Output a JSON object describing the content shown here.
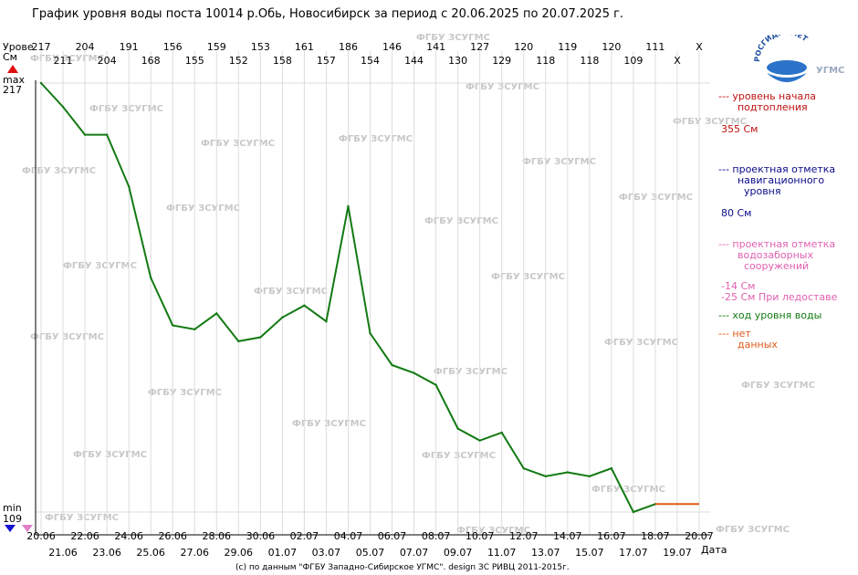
{
  "header": {
    "title": "График уровня воды поста 10014 р.Обь, Новосибирск за период с 20.06.2025 по 20.07.2025 г.",
    "copyright": "(c) по данным \"ФГБУ Западно-Сибирское УГМС\". design ЗС РИВЦ 2011-2015г."
  },
  "logo": {
    "top_text": "РОСГИДРОМЕТ",
    "side_text": "УГМС",
    "color": "#1e4fa0"
  },
  "watermark": "ФГБУ ЗСУГМС",
  "axis": {
    "y_label_line1": "Урове",
    "y_label_line2": "См",
    "max_label": "max",
    "max_value": "217",
    "min_label": "min",
    "min_value": "109",
    "x_label": "Дата"
  },
  "chart_data": {
    "type": "line",
    "title": "График уровня воды поста 10014 р.Обь, Новосибирск за период с 20.06.2025 по 20.07.2025 г.",
    "xlabel": "Дата",
    "ylabel": "Урове См",
    "ylim": [
      109,
      217
    ],
    "x": [
      "20.06",
      "21.06",
      "22.06",
      "23.06",
      "24.06",
      "25.06",
      "26.06",
      "27.06",
      "28.06",
      "29.06",
      "30.06",
      "01.07",
      "02.07",
      "03.07",
      "04.07",
      "05.07",
      "06.07",
      "07.07",
      "08.07",
      "09.07",
      "10.07",
      "11.07",
      "12.07",
      "13.07",
      "14.07",
      "15.07",
      "16.07",
      "17.07",
      "18.07",
      "19.07",
      "20.07"
    ],
    "series": [
      {
        "name": "ход уровня воды",
        "color": "#137a13",
        "values": [
          217,
          211,
          204,
          204,
          191,
          168,
          156,
          155,
          159,
          152,
          153,
          158,
          161,
          157,
          186,
          154,
          146,
          144,
          141,
          130,
          127,
          129,
          120,
          118,
          119,
          118,
          120,
          109,
          111,
          null,
          null
        ]
      }
    ],
    "missing_data": {
      "name": "нет данных",
      "color": "#e05a1a",
      "from": "18.07",
      "to": "20.07",
      "value": 111
    },
    "top_row_values": [
      "217",
      "204",
      "191",
      "156",
      "159",
      "153",
      "161",
      "186",
      "146",
      "141",
      "127",
      "120",
      "119",
      "120",
      "111",
      "X"
    ],
    "second_row_values": [
      "211",
      "204",
      "168",
      "155",
      "152",
      "158",
      "157",
      "154",
      "144",
      "130",
      "129",
      "118",
      "118",
      "109",
      "X"
    ],
    "missing_marker": "X"
  },
  "legend": [
    {
      "text": "--- уровень начала\n      подтопления",
      "color": "#c01010"
    },
    {
      "text": "355 См",
      "color": "#c01010"
    },
    {
      "text": "--- проектная отметка\n      навигационного\n        уровня",
      "color": "#0a0a8a"
    },
    {
      "text": "80 См",
      "color": "#0a0a8a"
    },
    {
      "text": "--- проектная отметка\n      водозаборных\n        сооружений",
      "color": "#e060b0"
    },
    {
      "text": "-14 См\n-25 См При ледоставе",
      "color": "#e060b0"
    },
    {
      "text": "--- ход уровня воды",
      "color": "#137a13"
    },
    {
      "text": "--- нет\n      данных",
      "color": "#e05a1a"
    }
  ]
}
